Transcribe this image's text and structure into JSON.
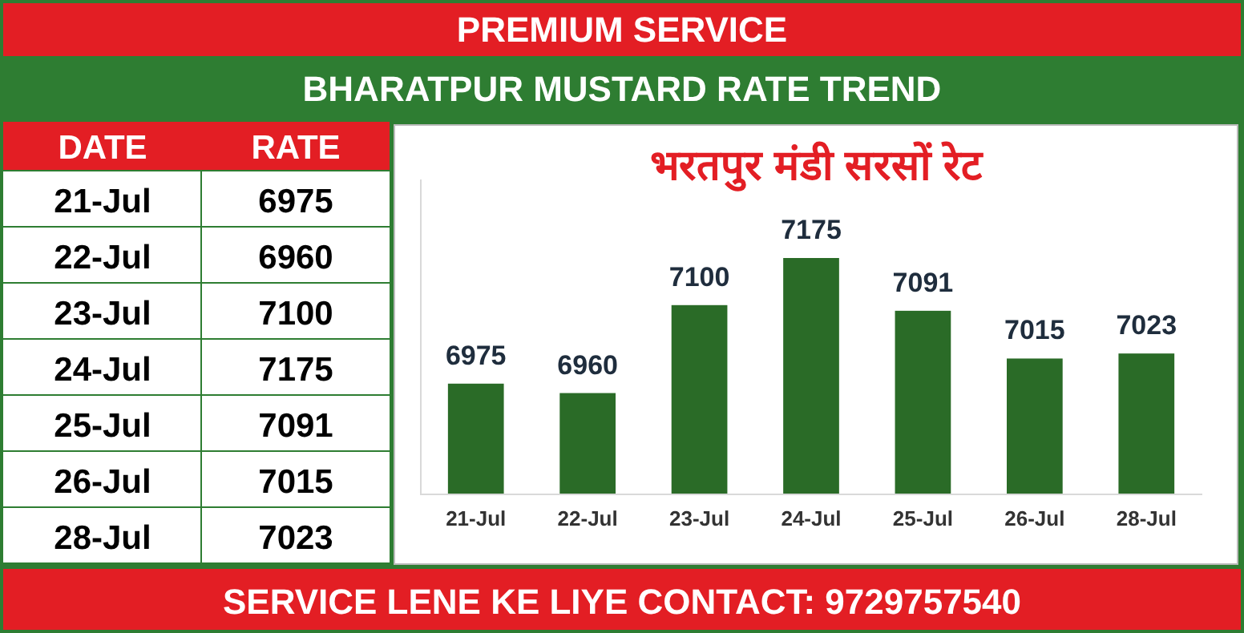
{
  "chart_data": [
    {
      "type": "other",
      "categories": [
        "21-Jul",
        "22-Jul",
        "23-Jul",
        "24-Jul",
        "25-Jul",
        "26-Jul",
        "28-Jul"
      ],
      "values": [
        6975,
        6960,
        7100,
        7175,
        7091,
        7015,
        7023
      ],
      "data_labels": true,
      "annotations": [
        "PREMIUM SERVICE",
        "BHARATPUR MUSTARD RATE TREND",
        "DATE",
        "RATE",
        "SERVICE LENE KE LIYE CONTACT: 9729757540"
      ]
    },
    {
      "type": "bar",
      "title": "भरतपुर मंडी सरसों रेट",
      "categories": [
        "21-Jul",
        "22-Jul",
        "23-Jul",
        "24-Jul",
        "25-Jul",
        "26-Jul",
        "28-Jul"
      ],
      "values": [
        6975,
        6960,
        7100,
        7175,
        7091,
        7015,
        7023
      ],
      "color": "#2a6b27",
      "ylim": [
        6800,
        7300
      ],
      "data_labels": true
    }
  ]
}
